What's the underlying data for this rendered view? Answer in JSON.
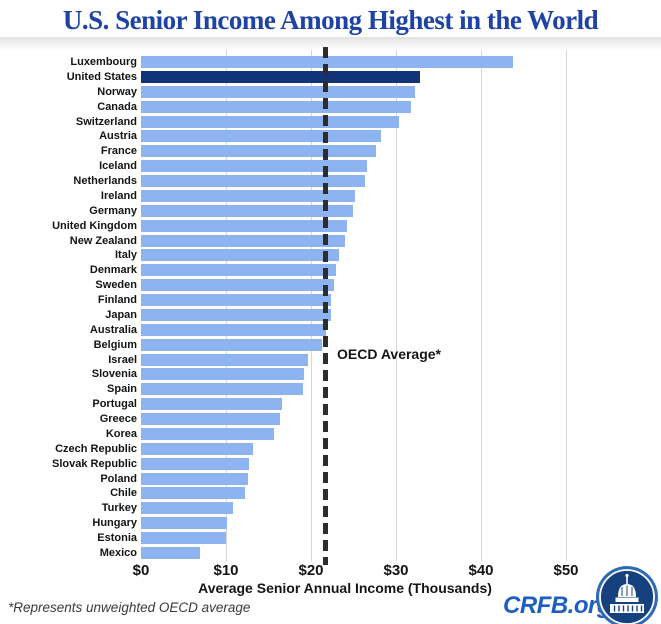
{
  "title": "U.S. Senior Income Among Highest in the World",
  "chart_data": {
    "type": "bar",
    "orientation": "horizontal",
    "title": "U.S. Senior Income Among Highest in the World",
    "xlabel": "Average Senior Annual Income (Thousands)",
    "ylabel": "",
    "xlim": [
      0,
      55
    ],
    "grid": "vertical",
    "legend": "none",
    "categories": [
      "Luxembourg",
      "United States",
      "Norway",
      "Canada",
      "Switzerland",
      "Austria",
      "France",
      "Iceland",
      "Netherlands",
      "Ireland",
      "Germany",
      "United Kingdom",
      "New Zealand",
      "Italy",
      "Denmark",
      "Sweden",
      "Finland",
      "Japan",
      "Australia",
      "Belgium",
      "Israel",
      "Slovenia",
      "Spain",
      "Portugal",
      "Greece",
      "Korea",
      "Czech Republic",
      "Slovak Republic",
      "Poland",
      "Chile",
      "Turkey",
      "Hungary",
      "Estonia",
      "Mexico"
    ],
    "values": [
      43.8,
      32.8,
      32.2,
      31.8,
      30.4,
      28.2,
      27.7,
      26.6,
      26.3,
      25.2,
      24.9,
      24.2,
      24.0,
      23.3,
      22.9,
      22.7,
      22.4,
      22.3,
      21.8,
      21.3,
      19.6,
      19.2,
      19.1,
      16.6,
      16.3,
      15.7,
      13.2,
      12.7,
      12.6,
      12.2,
      10.8,
      10.1,
      10.0,
      6.9
    ],
    "highlight_category": "United States",
    "x_ticks": [
      "$0",
      "$10",
      "$20",
      "$30",
      "$40",
      "$50"
    ],
    "x_tick_values": [
      0,
      10,
      20,
      30,
      40,
      50
    ],
    "reference_line": {
      "label": "OECD Average*",
      "value": 21.7
    },
    "colors": {
      "bar": "#8db4f0",
      "highlight_bar": "#123377",
      "reference_line": "#2d2d2d",
      "gridline": "#d6d6d6",
      "title": "#1e43a5"
    }
  },
  "footnote": "*Represents unweighted OECD average",
  "branding": {
    "site": "CRFB.org",
    "logo": "capitol-dome-icon",
    "color": "#1d5ec2"
  }
}
